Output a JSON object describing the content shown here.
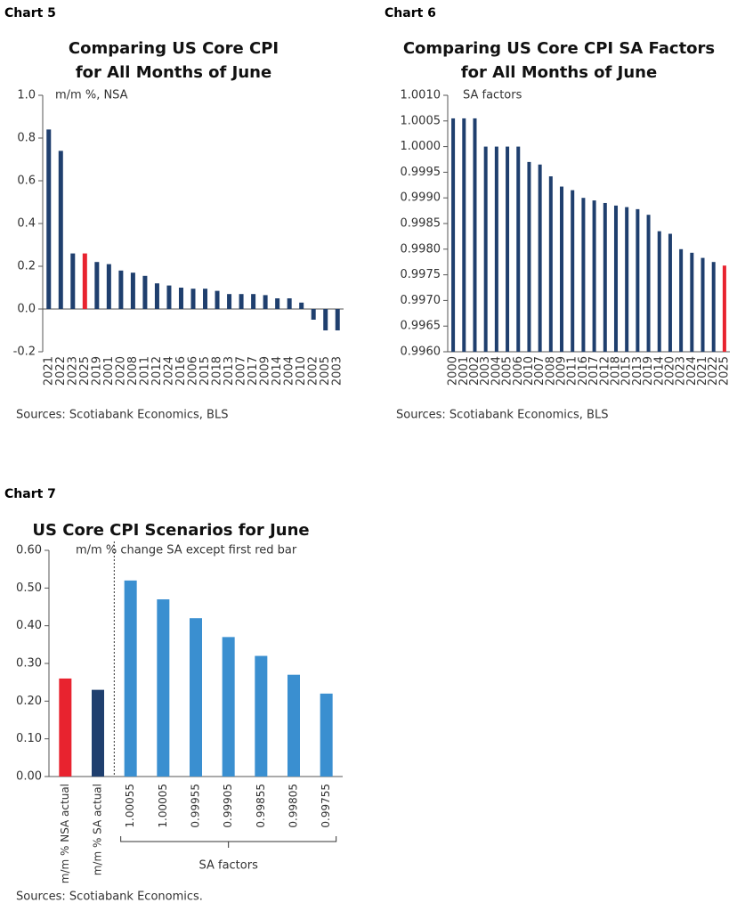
{
  "chart_data": [
    {
      "type": "bar",
      "label": "Chart 5",
      "title": [
        "Comparing US Core CPI",
        "for All Months of June"
      ],
      "note": "m/m %, NSA",
      "categories": [
        "2021",
        "2022",
        "2023",
        "2025",
        "2019",
        "2001",
        "2020",
        "2008",
        "2011",
        "2012",
        "2024",
        "2016",
        "2006",
        "2015",
        "2018",
        "2013",
        "2007",
        "2017",
        "2009",
        "2014",
        "2004",
        "2010",
        "2002",
        "2005",
        "2003"
      ],
      "values": [
        0.84,
        0.74,
        0.26,
        0.26,
        0.22,
        0.21,
        0.18,
        0.17,
        0.155,
        0.12,
        0.11,
        0.1,
        0.095,
        0.095,
        0.085,
        0.07,
        0.07,
        0.07,
        0.065,
        0.05,
        0.05,
        0.03,
        -0.05,
        -0.1,
        -0.1
      ],
      "colors": [
        "#1f3f6e",
        "#1f3f6e",
        "#1f3f6e",
        "#e8232f",
        "#1f3f6e",
        "#1f3f6e",
        "#1f3f6e",
        "#1f3f6e",
        "#1f3f6e",
        "#1f3f6e",
        "#1f3f6e",
        "#1f3f6e",
        "#1f3f6e",
        "#1f3f6e",
        "#1f3f6e",
        "#1f3f6e",
        "#1f3f6e",
        "#1f3f6e",
        "#1f3f6e",
        "#1f3f6e",
        "#1f3f6e",
        "#1f3f6e",
        "#1f3f6e",
        "#1f3f6e",
        "#1f3f6e"
      ],
      "ylim": [
        -0.2,
        1.0
      ],
      "yticks": [
        -0.2,
        {
          "value": 0,
          "label": "0.0"
        },
        0.2,
        0.4,
        0.6,
        0.8,
        {
          "value": 1,
          "label": "1.0"
        }
      ],
      "source": "Sources: Scotiabank Economics, BLS"
    },
    {
      "type": "bar",
      "label": "Chart 6",
      "title": [
        "Comparing US Core CPI SA Factors",
        "for All Months of June"
      ],
      "note": "SA factors",
      "categories": [
        "2000",
        "2001",
        "2002",
        "2003",
        "2004",
        "2005",
        "2006",
        "2010",
        "2007",
        "2008",
        "2009",
        "2011",
        "2016",
        "2017",
        "2012",
        "2018",
        "2015",
        "2013",
        "2019",
        "2014",
        "2020",
        "2023",
        "2024",
        "2021",
        "2022",
        "2025"
      ],
      "values": [
        1.00055,
        1.00055,
        1.00055,
        1.0,
        1.0,
        1.0,
        1.0,
        0.9997,
        0.99965,
        0.99942,
        0.99922,
        0.99915,
        0.999,
        0.99895,
        0.9989,
        0.99885,
        0.99882,
        0.99878,
        0.99867,
        0.99835,
        0.9983,
        0.998,
        0.99793,
        0.99783,
        0.99775,
        0.99768
      ],
      "colors": [
        "#1f3f6e",
        "#1f3f6e",
        "#1f3f6e",
        "#1f3f6e",
        "#1f3f6e",
        "#1f3f6e",
        "#1f3f6e",
        "#1f3f6e",
        "#1f3f6e",
        "#1f3f6e",
        "#1f3f6e",
        "#1f3f6e",
        "#1f3f6e",
        "#1f3f6e",
        "#1f3f6e",
        "#1f3f6e",
        "#1f3f6e",
        "#1f3f6e",
        "#1f3f6e",
        "#1f3f6e",
        "#1f3f6e",
        "#1f3f6e",
        "#1f3f6e",
        "#1f3f6e",
        "#1f3f6e",
        "#e8232f"
      ],
      "ylim": [
        0.996,
        1.001
      ],
      "yticks": [
        {
          "value": 0.996,
          "label": "0.9960"
        },
        {
          "value": 0.9965,
          "label": "0.9965"
        },
        {
          "value": 0.997,
          "label": "0.9970"
        },
        {
          "value": 0.9975,
          "label": "0.9975"
        },
        {
          "value": 0.998,
          "label": "0.9980"
        },
        {
          "value": 0.9985,
          "label": "0.9985"
        },
        {
          "value": 0.999,
          "label": "0.9990"
        },
        {
          "value": 0.9995,
          "label": "0.9995"
        },
        {
          "value": 1,
          "label": "1.0000"
        },
        {
          "value": 1.0005,
          "label": "1.0005"
        },
        {
          "value": 1.001,
          "label": "1.0010"
        }
      ],
      "source": "Sources: Scotiabank Economics, BLS"
    },
    {
      "type": "bar",
      "label": "Chart 7",
      "title": [
        "US Core CPI Scenarios for June"
      ],
      "note": "m/m % change SA except first red bar",
      "categories": [
        "m/m % NSA actual",
        "m/m % SA actual",
        "1.00055",
        "1.00005",
        "0.99955",
        "0.99905",
        "0.99855",
        "0.99805",
        "0.99755"
      ],
      "values": [
        0.26,
        0.23,
        0.52,
        0.47,
        0.42,
        0.37,
        0.32,
        0.27,
        0.22
      ],
      "colors": [
        "#e8232f",
        "#1f3f6e",
        "#3a8fd0",
        "#3a8fd0",
        "#3a8fd0",
        "#3a8fd0",
        "#3a8fd0",
        "#3a8fd0",
        "#3a8fd0"
      ],
      "ylim": [
        0,
        0.6
      ],
      "yticks": [
        {
          "value": 0,
          "label": "0.00"
        },
        {
          "value": 0.1,
          "label": "0.10"
        },
        {
          "value": 0.2,
          "label": "0.20"
        },
        {
          "value": 0.3,
          "label": "0.30"
        },
        {
          "value": 0.4,
          "label": "0.40"
        },
        {
          "value": 0.5,
          "label": "0.50"
        },
        {
          "value": 0.6,
          "label": "0.60"
        }
      ],
      "bracket_label": "SA factors",
      "source": "Sources: Scotiabank Economics."
    }
  ]
}
